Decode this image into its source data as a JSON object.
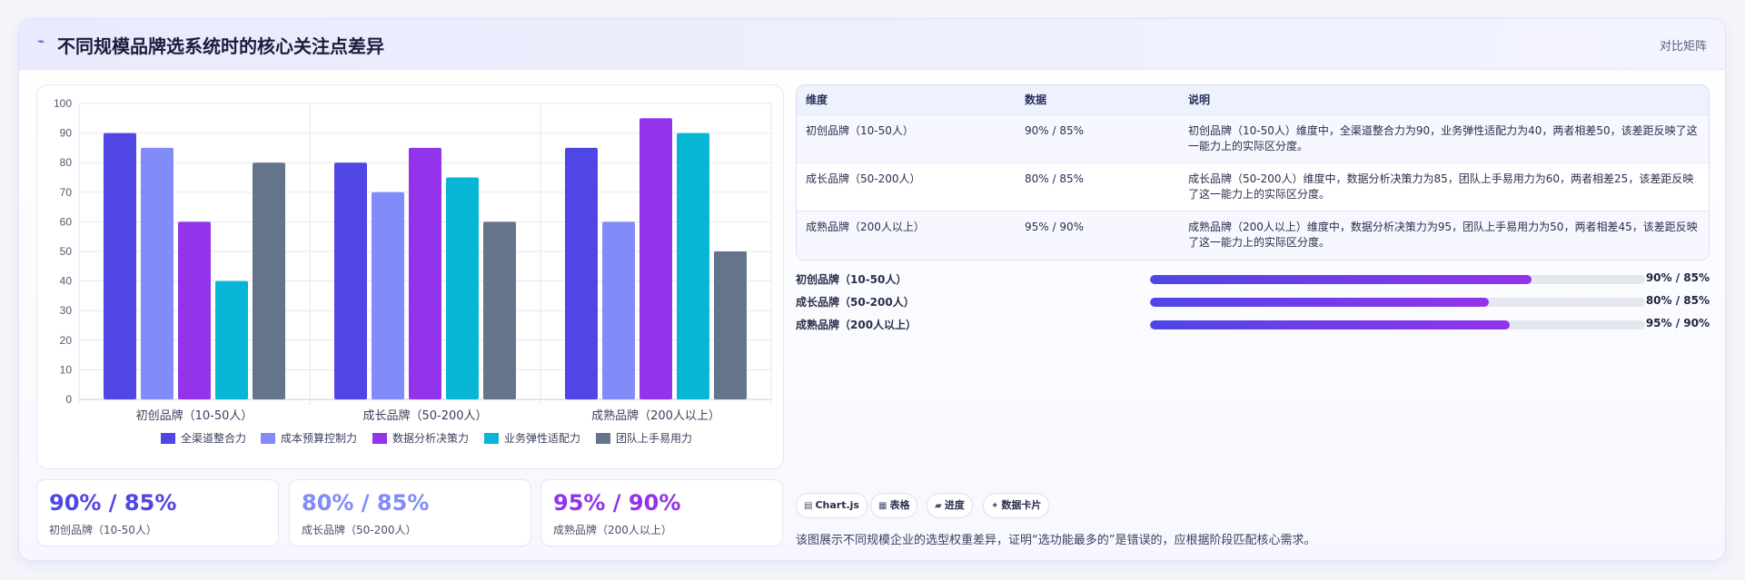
{
  "header": {
    "title": "不同规模品牌选系统时的核心关注点差异",
    "tag": "对比矩阵",
    "icon": "chart-line-icon"
  },
  "chart_data": {
    "type": "bar",
    "categories": [
      "初创品牌（10-50人）",
      "成长品牌（50-200人）",
      "成熟品牌（200人以上）"
    ],
    "series": [
      {
        "name": "全渠道整合力",
        "color": "#4f46e5",
        "values": [
          90,
          80,
          85
        ]
      },
      {
        "name": "成本预算控制力",
        "color": "#818cf8",
        "values": [
          85,
          70,
          60
        ]
      },
      {
        "name": "数据分析决策力",
        "color": "#9333ea",
        "values": [
          60,
          85,
          95
        ]
      },
      {
        "name": "业务弹性适配力",
        "color": "#06b6d4",
        "values": [
          40,
          75,
          90
        ]
      },
      {
        "name": "团队上手易用力",
        "color": "#64748b",
        "values": [
          80,
          60,
          50
        ]
      }
    ],
    "ylim": [
      0,
      100
    ],
    "yticks": [
      "0",
      "10",
      "20",
      "30",
      "40",
      "50",
      "60",
      "70",
      "80",
      "90",
      "100"
    ],
    "grid": true,
    "legend": "bottom"
  },
  "table": {
    "headers": [
      "维度",
      "数据",
      "说明"
    ],
    "rows": [
      {
        "dim": "初创品牌（10-50人）",
        "data": "90% / 85%",
        "desc": "初创品牌（10-50人）维度中，全渠道整合力为90，业务弹性适配力为40，两者相差50，该差距反映了这一能力上的实际区分度。"
      },
      {
        "dim": "成长品牌（50-200人）",
        "data": "80% / 85%",
        "desc": "成长品牌（50-200人）维度中，数据分析决策力为85，团队上手易用力为60，两者相差25，该差距反映了这一能力上的实际区分度。"
      },
      {
        "dim": "成熟品牌（200人以上）",
        "data": "95% / 90%",
        "desc": "成熟品牌（200人以上）维度中，数据分析决策力为95，团队上手易用力为50，两者相差45，该差距反映了这一能力上的实际区分度。"
      }
    ]
  },
  "progress": [
    {
      "label": "初创品牌（10-50人）",
      "value": "90% / 85%",
      "fill": 0.77
    },
    {
      "label": "成长品牌（50-200人）",
      "value": "80% / 85%",
      "fill": 0.685
    },
    {
      "label": "成熟品牌（200人以上）",
      "value": "95% / 90%",
      "fill": 0.727
    }
  ],
  "stats": [
    {
      "value": "90% / 85%",
      "label": "初创品牌（10-50人）",
      "color": "#4f46e5"
    },
    {
      "value": "80% / 85%",
      "label": "成长品牌（50-200人）",
      "color": "#818cf8"
    },
    {
      "value": "95% / 90%",
      "label": "成熟品牌（200人以上）",
      "color": "#9333ea"
    }
  ],
  "chips": [
    {
      "icon": "▤",
      "label": "Chart.js"
    },
    {
      "icon": "▦",
      "label": "表格"
    },
    {
      "icon": "▰",
      "label": "进度"
    },
    {
      "icon": "✦",
      "label": "数据卡片"
    }
  ],
  "footnote": "该图展示不同规模企业的选型权重差异，证明“选功能最多的”是错误的，应根据阶段匹配核心需求。"
}
